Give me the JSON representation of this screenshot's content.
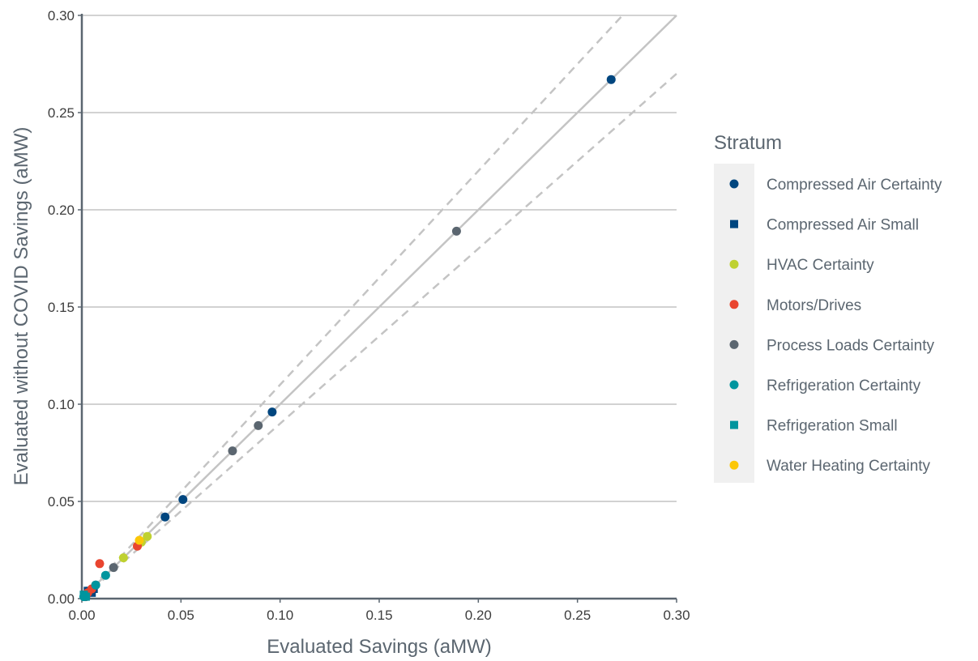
{
  "chart_data": {
    "type": "scatter",
    "xlabel": "Evaluated Savings (aMW)",
    "ylabel": "Evaluated without COVID Savings (aMW)",
    "xlim": [
      0,
      0.3
    ],
    "ylim": [
      0,
      0.3
    ],
    "x_ticks": [
      "0.00",
      "0.05",
      "0.10",
      "0.15",
      "0.20",
      "0.25",
      "0.30"
    ],
    "y_ticks": [
      "0.00",
      "0.05",
      "0.10",
      "0.15",
      "0.20",
      "0.25",
      "0.30"
    ],
    "horizontal_grid": true,
    "vertical_grid": false,
    "reference_lines": [
      {
        "style": "solid",
        "slope": 1.0
      },
      {
        "style": "dashed",
        "slope": 1.1
      },
      {
        "style": "dashed",
        "slope": 0.9
      }
    ],
    "legend": {
      "title": "Stratum",
      "position": "right",
      "entries": [
        {
          "name": "Compressed Air Certainty",
          "color": "#00467f",
          "shape": "circle"
        },
        {
          "name": "Compressed Air Small",
          "color": "#00467f",
          "shape": "square"
        },
        {
          "name": "HVAC Certainty",
          "color": "#bfd130",
          "shape": "circle"
        },
        {
          "name": "Motors/Drives",
          "color": "#e9452f",
          "shape": "circle"
        },
        {
          "name": "Process Loads Certainty",
          "color": "#5b6670",
          "shape": "circle"
        },
        {
          "name": "Refrigeration Certainty",
          "color": "#00959e",
          "shape": "circle"
        },
        {
          "name": "Refrigeration Small",
          "color": "#00959e",
          "shape": "square"
        },
        {
          "name": "Water Heating Certainty",
          "color": "#fcc707",
          "shape": "circle"
        }
      ]
    },
    "series": [
      {
        "name": "Compressed Air Certainty",
        "points": [
          [
            0.267,
            0.267
          ],
          [
            0.096,
            0.096
          ],
          [
            0.051,
            0.051
          ],
          [
            0.042,
            0.042
          ],
          [
            0.004,
            0.004
          ]
        ]
      },
      {
        "name": "Compressed Air Small",
        "points": [
          [
            0.002,
            0.002
          ],
          [
            0.003,
            0.004
          ],
          [
            0.004,
            0.004
          ],
          [
            0.005,
            0.003
          ],
          [
            0.006,
            0.005
          ]
        ]
      },
      {
        "name": "HVAC Certainty",
        "points": [
          [
            0.021,
            0.021
          ],
          [
            0.03,
            0.029
          ],
          [
            0.033,
            0.032
          ]
        ]
      },
      {
        "name": "Motors/Drives",
        "points": [
          [
            0.009,
            0.018
          ],
          [
            0.028,
            0.027
          ],
          [
            0.005,
            0.005
          ],
          [
            0.003,
            0.003
          ]
        ]
      },
      {
        "name": "Process Loads Certainty",
        "points": [
          [
            0.189,
            0.189
          ],
          [
            0.089,
            0.089
          ],
          [
            0.076,
            0.076
          ],
          [
            0.016,
            0.016
          ],
          [
            0.007,
            0.007
          ],
          [
            0.002,
            0.001
          ]
        ]
      },
      {
        "name": "Refrigeration Certainty",
        "points": [
          [
            0.012,
            0.012
          ],
          [
            0.007,
            0.007
          ],
          [
            0.001,
            0.001
          ]
        ]
      },
      {
        "name": "Refrigeration Small",
        "points": [
          [
            0.001,
            0.002
          ],
          [
            0.002,
            0.001
          ]
        ]
      },
      {
        "name": "Water Heating Certainty",
        "points": [
          [
            0.029,
            0.03
          ]
        ]
      }
    ]
  }
}
